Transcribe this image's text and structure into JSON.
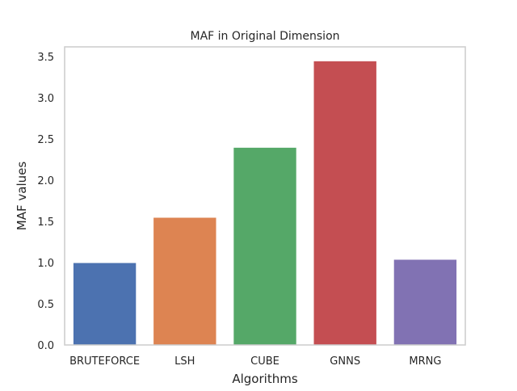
{
  "chart_data": {
    "type": "bar",
    "title": "MAF in Original Dimension",
    "xlabel": "Algorithms",
    "ylabel": "MAF values",
    "categories": [
      "BRUTEFORCE",
      "LSH",
      "CUBE",
      "GNNS",
      "MRNG"
    ],
    "values": [
      1.0,
      1.55,
      2.4,
      3.45,
      1.04
    ],
    "colors": [
      "#4c72b0",
      "#dd8452",
      "#55a868",
      "#c44e52",
      "#8172b3"
    ],
    "ylim": [
      0,
      3.62
    ],
    "yticks": [
      "0.0",
      "0.5",
      "1.0",
      "1.5",
      "2.0",
      "2.5",
      "3.0",
      "3.5"
    ],
    "grid": false,
    "legend": "none"
  }
}
